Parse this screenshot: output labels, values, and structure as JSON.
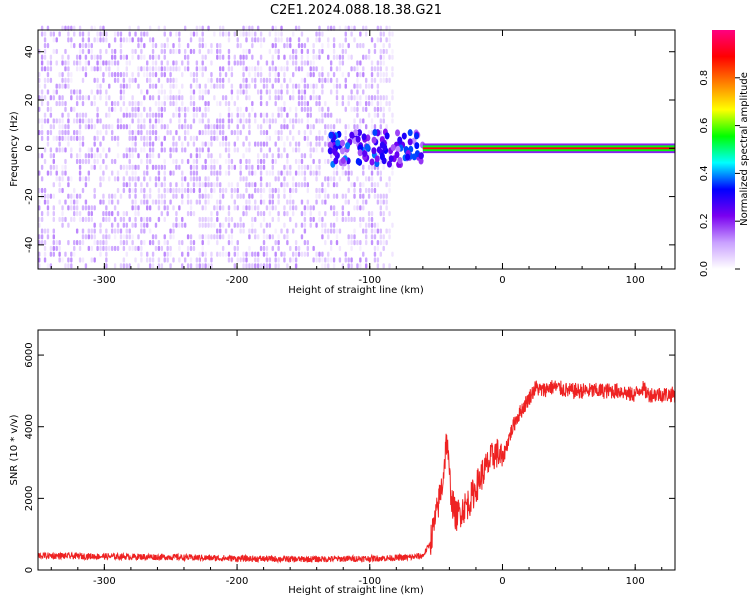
{
  "title": "C2E1.2024.088.18.38.G21",
  "chart_data": [
    {
      "type": "heatmap",
      "title": "C2E1.2024.088.18.38.G21",
      "xlabel": "Height of straight line (km)",
      "ylabel": "Frequency (Hz)",
      "xlim": [
        -350,
        130
      ],
      "ylim": [
        -50,
        49
      ],
      "x_ticks": [
        -300,
        -200,
        -100,
        0,
        100
      ],
      "y_ticks": [
        -40,
        -20,
        0,
        20,
        40
      ],
      "colorbar": {
        "label": "Normalized spectral amplitude",
        "range": [
          0,
          1
        ],
        "ticks": [
          0.0,
          0.2,
          0.4,
          0.6,
          0.8
        ],
        "colors": [
          "#ffffff",
          "#c9a0ff",
          "#7a00f0",
          "#0000ff",
          "#00ffff",
          "#00ff00",
          "#ffff00",
          "#ff8000",
          "#ff0000",
          "#ff0080"
        ]
      },
      "regions": [
        {
          "name": "noise",
          "x": [
            -350,
            -80
          ],
          "y": [
            -50,
            49
          ],
          "amplitude": 0.12
        },
        {
          "name": "carrier-onset",
          "x": [
            -130,
            -60
          ],
          "y": [
            -8,
            9
          ],
          "amplitude": 0.3
        },
        {
          "name": "carrier",
          "x": [
            -60,
            130
          ],
          "y": [
            -2,
            2
          ],
          "amplitude": 0.9
        }
      ]
    },
    {
      "type": "line",
      "xlabel": "Height of straight line (km)",
      "ylabel": "SNR (10 * v/v)",
      "xlim": [
        -350,
        130
      ],
      "ylim": [
        0,
        6700
      ],
      "x_ticks": [
        -300,
        -200,
        -100,
        0,
        100
      ],
      "y_ticks": [
        0,
        2000,
        4000,
        6000
      ],
      "color": "#ee2222",
      "series": [
        {
          "x": [
            -350,
            -300,
            -250,
            -200,
            -150,
            -100,
            -70,
            -60,
            -55,
            -50,
            -45,
            -42,
            -40,
            -38,
            -35,
            -30,
            -25,
            -20,
            -15,
            -10,
            -5,
            0,
            5,
            10,
            15,
            20,
            25,
            30,
            35,
            40,
            50,
            60,
            70,
            80,
            90,
            95,
            100,
            105,
            110,
            120,
            130
          ],
          "values": [
            400,
            380,
            360,
            320,
            300,
            320,
            350,
            400,
            700,
            1500,
            2500,
            3700,
            2600,
            1900,
            1500,
            1700,
            1900,
            2300,
            2700,
            3000,
            3300,
            3100,
            3700,
            4200,
            4500,
            4800,
            5100,
            5000,
            5100,
            5100,
            5000,
            5000,
            5000,
            5000,
            5000,
            4900,
            4900,
            5100,
            4900,
            4900,
            4900
          ]
        }
      ]
    }
  ]
}
